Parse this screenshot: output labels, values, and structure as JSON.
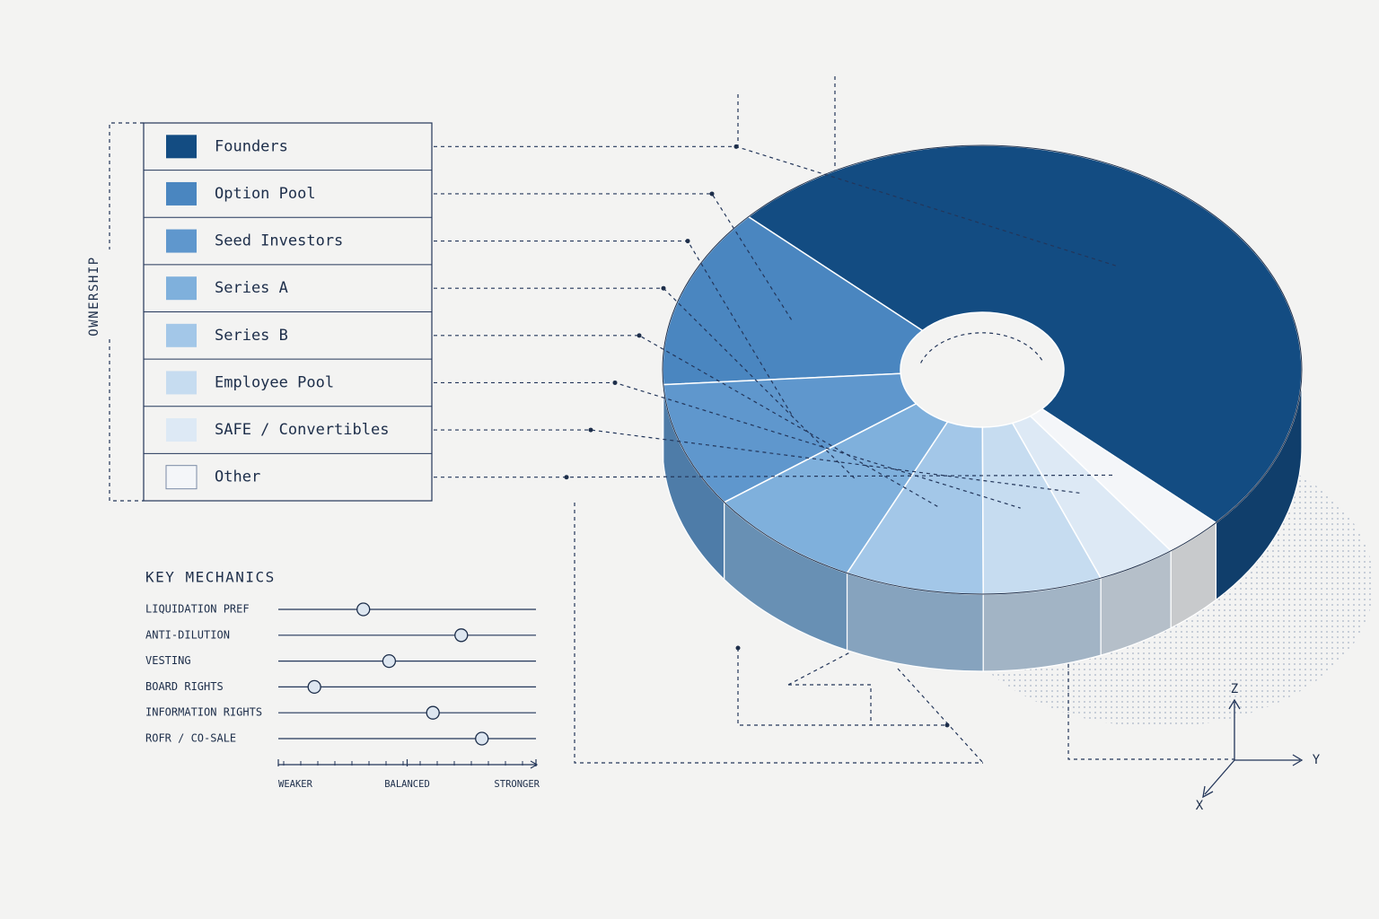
{
  "chart_data": [
    {
      "type": "pie",
      "label": "OWNERSHIP",
      "categories": [
        "Founders",
        "Option Pool",
        "Seed Investors",
        "Series A",
        "Series B",
        "Employee Pool",
        "SAFE / Convertibles",
        "Other"
      ],
      "values": [
        50,
        13,
        9,
        8,
        7,
        6,
        4,
        3
      ],
      "colors": [
        "#134c82",
        "#4a86c0",
        "#5f97cd",
        "#7fb0dc",
        "#a3c7e8",
        "#c6dcf0",
        "#dde9f5",
        "#f4f6f9"
      ]
    },
    {
      "type": "dot",
      "title": "KEY MECHANICS",
      "categories": [
        "LIQUIDATION PREF",
        "ANTI-DILUTION",
        "VESTING",
        "BOARD RIGHTS",
        "INFORMATION RIGHTS",
        "ROFR / CO-SALE"
      ],
      "values": [
        33,
        71,
        43,
        14,
        60,
        79
      ],
      "xlim": [
        0,
        100
      ],
      "xticks": [
        {
          "value": 0,
          "label": "WEAKER"
        },
        {
          "value": 50,
          "label": "BALANCED"
        },
        {
          "value": 100,
          "label": "STRONGER"
        }
      ]
    }
  ],
  "gizmo": {
    "z": "Z",
    "y": "Y",
    "x": "X"
  }
}
